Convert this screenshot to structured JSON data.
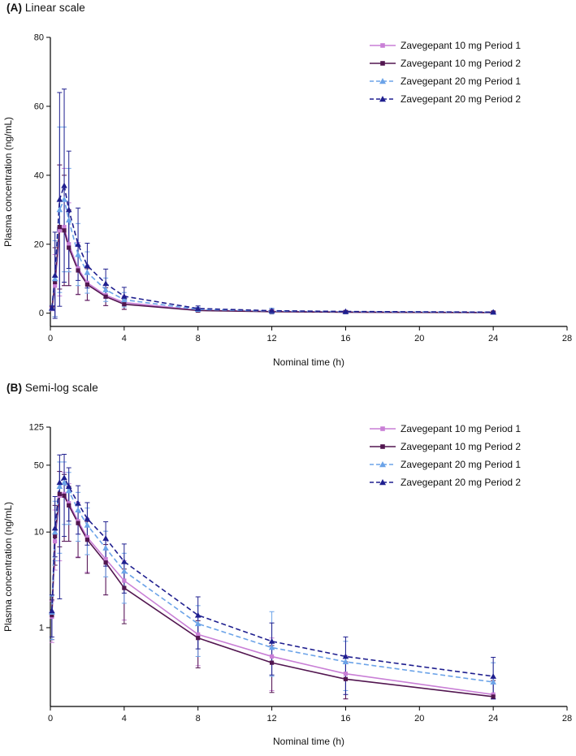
{
  "figure": {
    "background": "#ffffff"
  },
  "panels": [
    {
      "prefix": "(A)",
      "label": "Linear scale"
    },
    {
      "prefix": "(B)",
      "label": "Semi-log scale"
    }
  ],
  "chart_data": [
    {
      "type": "line",
      "title": "(A) Linear scale",
      "xlabel": "Nominal time (h)",
      "ylabel": "Plasma concentration (ng/mL)",
      "yscale": "linear",
      "xlim": [
        0,
        28
      ],
      "ylim": [
        0,
        80
      ],
      "xticks": [
        0,
        4,
        8,
        12,
        16,
        20,
        24,
        28
      ],
      "yticks": [
        0,
        20,
        40,
        60,
        80
      ],
      "grid": false,
      "legend_position": "top-right",
      "x": [
        0.083,
        0.25,
        0.5,
        0.75,
        1,
        1.5,
        2,
        3,
        4,
        8,
        12,
        16,
        24
      ],
      "series": [
        {
          "name": "Zavegepant 10 mg Period 1",
          "color": "#c97fd6",
          "line": "solid",
          "marker": "square",
          "values": [
            1.3,
            8,
            24,
            25,
            20,
            13,
            8.8,
            5.2,
            3.1,
            0.85,
            0.5,
            0.33,
            0.2
          ],
          "errors": [
            0.6,
            9,
            19,
            17,
            12,
            7.5,
            5,
            3,
            1.9,
            0.45,
            0.28,
            0.18,
            0.1
          ]
        },
        {
          "name": "Zavegepant 10 mg Period 2",
          "color": "#521650",
          "line": "solid",
          "marker": "square",
          "values": [
            1.35,
            9,
            25,
            24,
            19,
            12.4,
            8.3,
            4.8,
            2.6,
            0.78,
            0.43,
            0.29,
            0.19
          ],
          "errors": [
            0.6,
            10,
            18,
            16,
            11,
            7,
            4.6,
            2.6,
            1.5,
            0.4,
            0.22,
            0.15,
            0.09
          ]
        },
        {
          "name": "Zavegepant 20 mg Period 1",
          "color": "#6ba3e8",
          "line": "dashed",
          "marker": "triangle",
          "values": [
            1.45,
            10,
            30,
            33,
            27,
            17,
            11.8,
            6.8,
            3.9,
            1.1,
            0.62,
            0.44,
            0.27
          ],
          "errors": [
            0.7,
            11,
            24,
            21,
            15,
            9,
            6,
            3.4,
            2.1,
            0.6,
            0.85,
            0.28,
            0.16
          ]
        },
        {
          "name": "Zavegepant 20 mg Period 2",
          "color": "#1f1f8f",
          "line": "dashed",
          "marker": "triangle",
          "values": [
            1.5,
            11,
            33,
            37,
            30,
            20,
            13.8,
            8.6,
            4.9,
            1.35,
            0.72,
            0.5,
            0.31
          ],
          "errors": [
            0.7,
            12.5,
            31,
            28,
            17,
            10.5,
            6.5,
            4.2,
            2.6,
            0.75,
            0.4,
            0.3,
            0.18
          ]
        }
      ]
    },
    {
      "type": "line",
      "title": "(B) Semi-log scale",
      "xlabel": "Nominal time (h)",
      "ylabel": "Plasma concentration (ng/mL)",
      "yscale": "log",
      "xlim": [
        0,
        28
      ],
      "ylim": [
        0.15,
        125
      ],
      "xticks": [
        0,
        4,
        8,
        12,
        16,
        20,
        24,
        28
      ],
      "yticks": [
        1,
        10,
        50,
        125
      ],
      "grid": false,
      "legend_position": "top-right",
      "x": [
        0.083,
        0.25,
        0.5,
        0.75,
        1,
        1.5,
        2,
        3,
        4,
        8,
        12,
        16,
        24
      ],
      "series": [
        {
          "name": "Zavegepant 10 mg Period 1",
          "color": "#c97fd6",
          "line": "solid",
          "marker": "square",
          "values": [
            1.3,
            8,
            24,
            25,
            20,
            13,
            8.8,
            5.2,
            3.1,
            0.85,
            0.5,
            0.33,
            0.2
          ],
          "errors": [
            0.6,
            9,
            19,
            17,
            12,
            7.5,
            5,
            3,
            1.9,
            0.45,
            0.28,
            0.18,
            0.1
          ]
        },
        {
          "name": "Zavegepant 10 mg Period 2",
          "color": "#521650",
          "line": "solid",
          "marker": "square",
          "values": [
            1.35,
            9,
            25,
            24,
            19,
            12.4,
            8.3,
            4.8,
            2.6,
            0.78,
            0.43,
            0.29,
            0.19
          ],
          "errors": [
            0.6,
            10,
            18,
            16,
            11,
            7,
            4.6,
            2.6,
            1.5,
            0.4,
            0.22,
            0.15,
            0.09
          ]
        },
        {
          "name": "Zavegepant 20 mg Period 1",
          "color": "#6ba3e8",
          "line": "dashed",
          "marker": "triangle",
          "values": [
            1.45,
            10,
            30,
            33,
            27,
            17,
            11.8,
            6.8,
            3.9,
            1.1,
            0.62,
            0.44,
            0.27
          ],
          "errors": [
            0.7,
            11,
            24,
            21,
            15,
            9,
            6,
            3.4,
            2.1,
            0.6,
            0.85,
            0.28,
            0.16
          ]
        },
        {
          "name": "Zavegepant 20 mg Period 2",
          "color": "#1f1f8f",
          "line": "dashed",
          "marker": "triangle",
          "values": [
            1.5,
            11,
            33,
            37,
            30,
            20,
            13.8,
            8.6,
            4.9,
            1.35,
            0.72,
            0.5,
            0.31
          ],
          "errors": [
            0.7,
            12.5,
            31,
            28,
            17,
            10.5,
            6.5,
            4.2,
            2.6,
            0.75,
            0.4,
            0.3,
            0.18
          ]
        }
      ]
    }
  ]
}
